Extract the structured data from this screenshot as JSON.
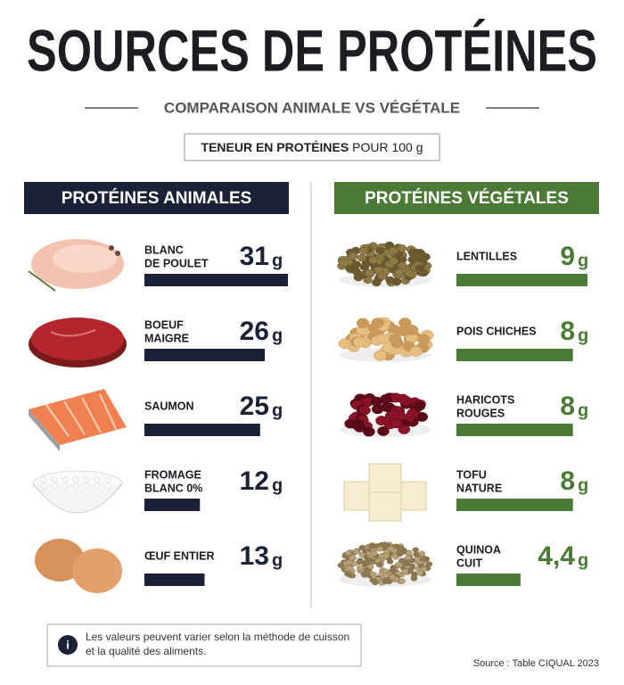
{
  "header": {
    "title": "SOURCES DE PROTÉINES",
    "subtitle": "COMPARAISON ANIMALE VS VÉGÉTALE",
    "badge_bold": "TENEUR EN PROTÉINES",
    "badge_rest": "POUR 100 g"
  },
  "unit": "g",
  "columns": [
    {
      "title": "PROTÉINES ANIMALES",
      "color": "#1b2238",
      "items": [
        {
          "name": [
            "BLANC",
            "DE POULET"
          ],
          "value": 31,
          "value_label": "31"
        },
        {
          "name": [
            "BOEUF",
            "MAIGRE"
          ],
          "value": 26,
          "value_label": "26"
        },
        {
          "name": [
            "SAUMON"
          ],
          "value": 25,
          "value_label": "25"
        },
        {
          "name": [
            "FROMAGE",
            "BLANC 0%"
          ],
          "value": 12,
          "value_label": "12"
        },
        {
          "name": [
            "ŒUF ENTIER"
          ],
          "value": 13,
          "value_label": "13"
        }
      ]
    },
    {
      "title": "PROTÉINES VÉGÉTALES",
      "color": "#4a7a36",
      "items": [
        {
          "name": [
            "LENTILLES"
          ],
          "value": 9,
          "value_label": "9"
        },
        {
          "name": [
            "POIS CHICHES"
          ],
          "value": 8,
          "value_label": "8"
        },
        {
          "name": [
            "HARICOTS",
            "ROUGES"
          ],
          "value": 8,
          "value_label": "8"
        },
        {
          "name": [
            "TOFU",
            "NATURE"
          ],
          "value": 8,
          "value_label": "8"
        },
        {
          "name": [
            "QUINOA",
            "CUIT"
          ],
          "value": 4.4,
          "value_label": "4,4"
        }
      ]
    }
  ],
  "note": "Les valeurs peuvent varier selon la méthode de cuisson et la qualité des aliments.",
  "source": "Source : Table CIQUAL 2023"
}
